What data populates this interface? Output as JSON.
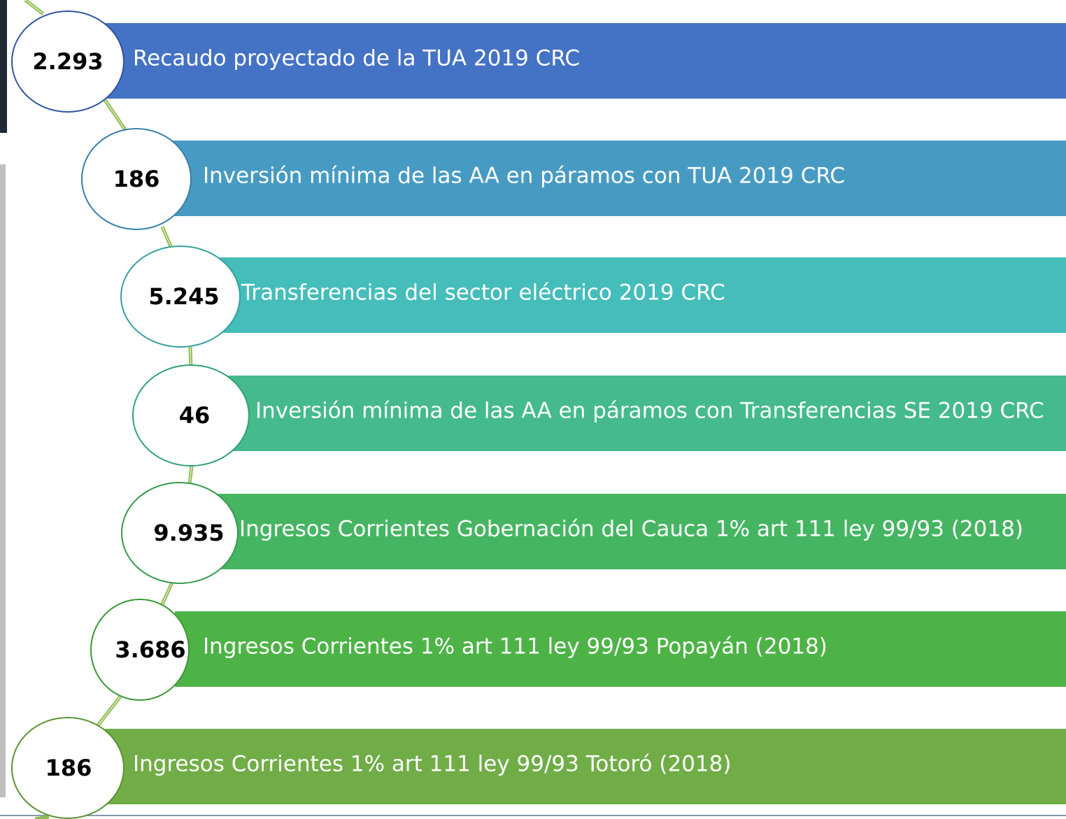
{
  "items": [
    {
      "value": "2.293",
      "label": "Recaudo proyectado de la TUA 2019 CRC"
    },
    {
      "value": "186",
      "label": "Inversión mínima de las AA  en páramos con TUA 2019 CRC"
    },
    {
      "value": "5.245",
      "label": "Transferencias del sector eléctrico 2019 CRC"
    },
    {
      "value": "46",
      "label": "Inversión mínima de las AA en páramos con Transferencias SE 2019 CRC"
    },
    {
      "value": "9.935",
      "label": "Ingresos Corrientes Gobernación del Cauca 1% art 111 ley 99/93 (2018)"
    },
    {
      "value": "3.686",
      "label": "Ingresos Corrientes 1% art 111 ley 99/93 Popayán (2018)"
    },
    {
      "value": "186",
      "label": "Ingresos Corrientes 1% art 111 ley 99/93 Totoró (2018)"
    }
  ]
}
